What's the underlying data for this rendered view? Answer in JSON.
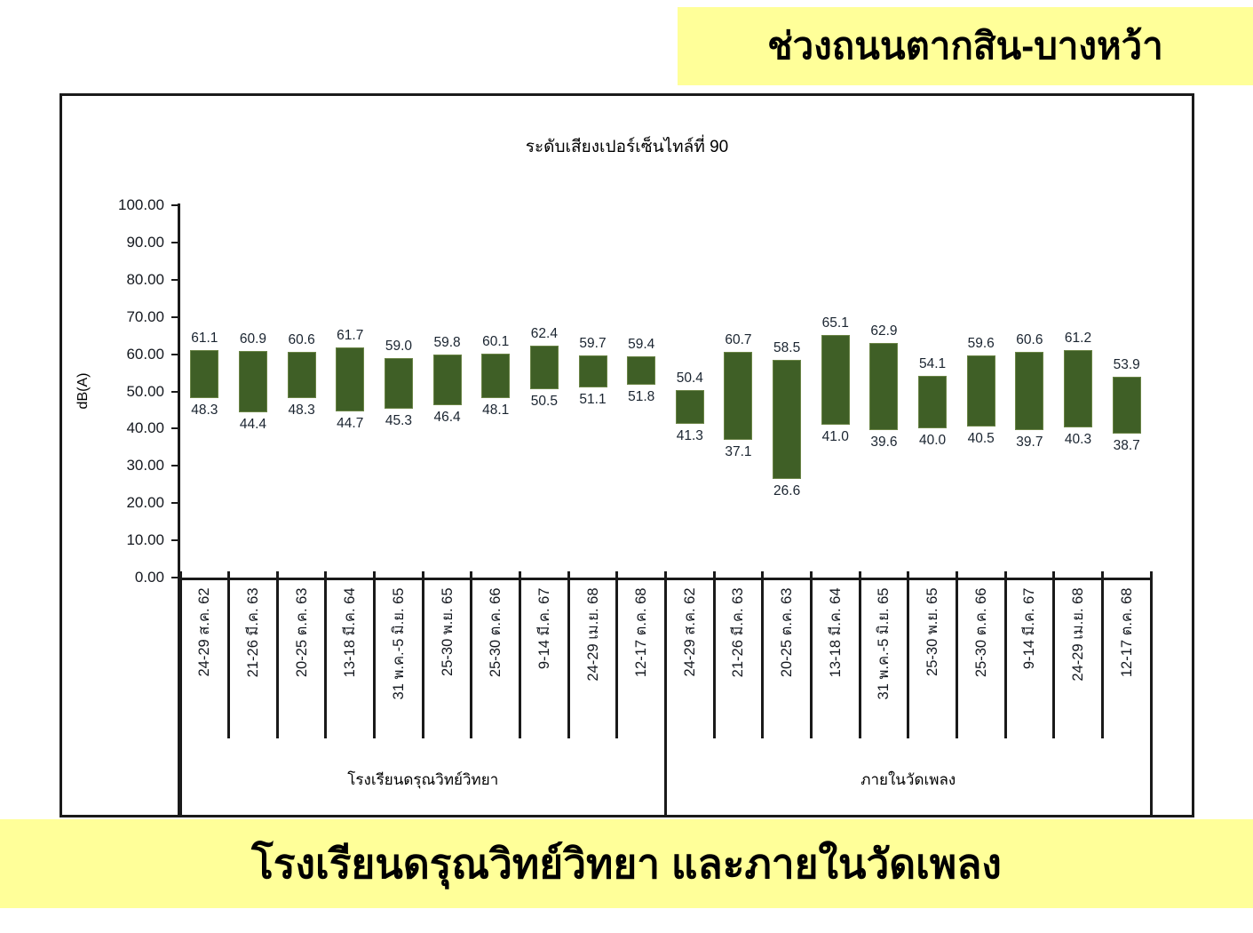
{
  "top_banner": {
    "text": "ช่วงถนนตากสิน-บางหว้า"
  },
  "bottom_banner": {
    "text": "โรงเรียนดรุณวิทย์วิทยา และภายในวัดเพลง"
  },
  "colors": {
    "banner_bg": "#FFFF99",
    "bar_fill": "#3F5F26",
    "bar_edge": "#6A8446",
    "axis": "#1A1A1A",
    "value_label_text": "#1A2430"
  },
  "chart_data": {
    "type": "bar",
    "subtype": "floating_range_bars",
    "title": "ระดับเสียงเปอร์เซ็นไทล์ที่ 90",
    "ylabel": "dB(A)",
    "ylim": [
      0,
      100
    ],
    "ytick_step": 10,
    "ytick_decimals": 2,
    "value_label_decimals": 1,
    "grid": false,
    "legend": "none",
    "bar_color": "#3F5F26",
    "categories": [
      "24-29 ส.ค. 62",
      "21-26 มี.ค. 63",
      "20-25 ต.ค. 63",
      "13-18 มี.ค. 64",
      "31 พ.ค.-5 มิ.ย. 65",
      "25-30 พ.ย. 65",
      "25-30 ต.ค. 66",
      "9-14 มี.ค. 67",
      "24-29 เม.ย. 68",
      "12-17 ต.ค. 68"
    ],
    "groups": [
      {
        "label": "โรงเรียนดรุณวิทย์วิทยา",
        "bars": [
          {
            "low": 48.3,
            "high": 61.1
          },
          {
            "low": 44.4,
            "high": 60.9
          },
          {
            "low": 48.3,
            "high": 60.6
          },
          {
            "low": 44.7,
            "high": 61.7
          },
          {
            "low": 45.3,
            "high": 59.0
          },
          {
            "low": 46.4,
            "high": 59.8
          },
          {
            "low": 48.1,
            "high": 60.1
          },
          {
            "low": 50.5,
            "high": 62.4
          },
          {
            "low": 51.1,
            "high": 59.7
          },
          {
            "low": 51.8,
            "high": 59.4
          }
        ]
      },
      {
        "label": "ภายในวัดเพลง",
        "bars": [
          {
            "low": 41.3,
            "high": 50.4
          },
          {
            "low": 37.1,
            "high": 60.7
          },
          {
            "low": 26.6,
            "high": 58.5
          },
          {
            "low": 41.0,
            "high": 65.1
          },
          {
            "low": 39.6,
            "high": 62.9
          },
          {
            "low": 40.0,
            "high": 54.1
          },
          {
            "low": 40.5,
            "high": 59.6
          },
          {
            "low": 39.7,
            "high": 60.6
          },
          {
            "low": 40.3,
            "high": 61.2
          },
          {
            "low": 38.7,
            "high": 53.9
          }
        ]
      }
    ]
  }
}
